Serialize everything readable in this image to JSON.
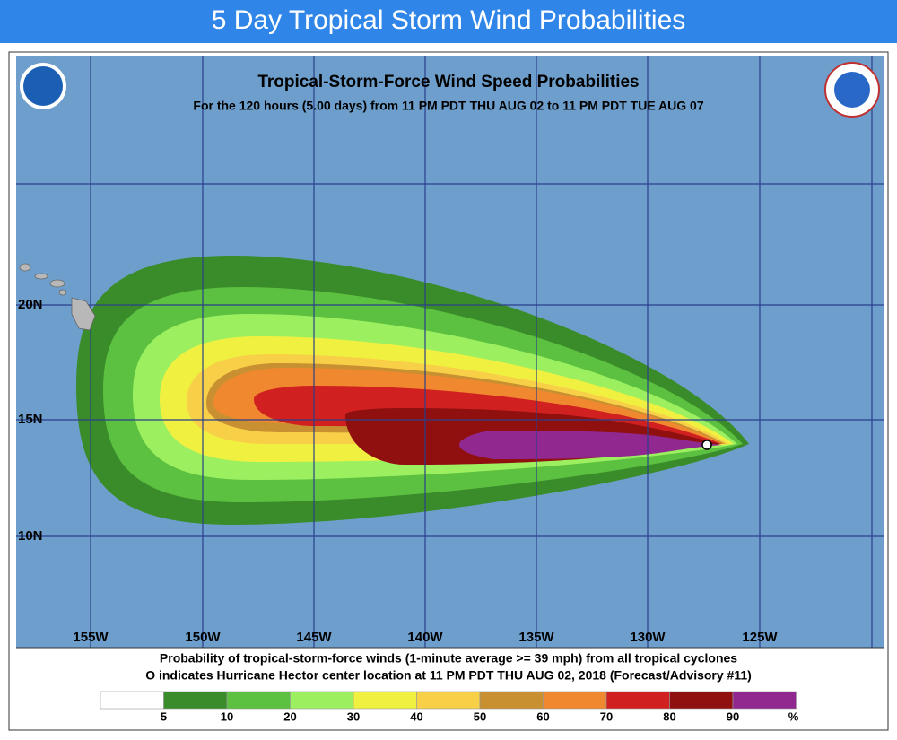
{
  "header": {
    "title": "5 Day Tropical Storm Wind Probabilities"
  },
  "map": {
    "title": "Tropical-Storm-Force Wind Speed Probabilities",
    "subtitle": "For the 120 hours (5.00 days) from 11 PM PDT THU AUG 02 to 11 PM PDT TUE AUG 07",
    "lon_labels": [
      "155W",
      "150W",
      "145W",
      "140W",
      "135W",
      "130W",
      "125W"
    ],
    "lat_labels": [
      "20N",
      "15N",
      "10N"
    ],
    "notes": [
      "Probability of tropical-storm-force winds (1-minute average >= 39 mph) from all tropical cyclones",
      "O indicates Hurricane Hector center location at 11 PM PDT THU AUG 02, 2018 (Forecast/Advisory #11)"
    ],
    "legend": {
      "colors": [
        "#ffffff",
        "#3a8c2a",
        "#5cc040",
        "#9cf060",
        "#f0f040",
        "#f8d048",
        "#c89030",
        "#f08830",
        "#d02020",
        "#901010",
        "#902890"
      ],
      "labels": [
        "5",
        "10",
        "20",
        "30",
        "40",
        "50",
        "60",
        "70",
        "80",
        "90",
        "%"
      ]
    }
  }
}
